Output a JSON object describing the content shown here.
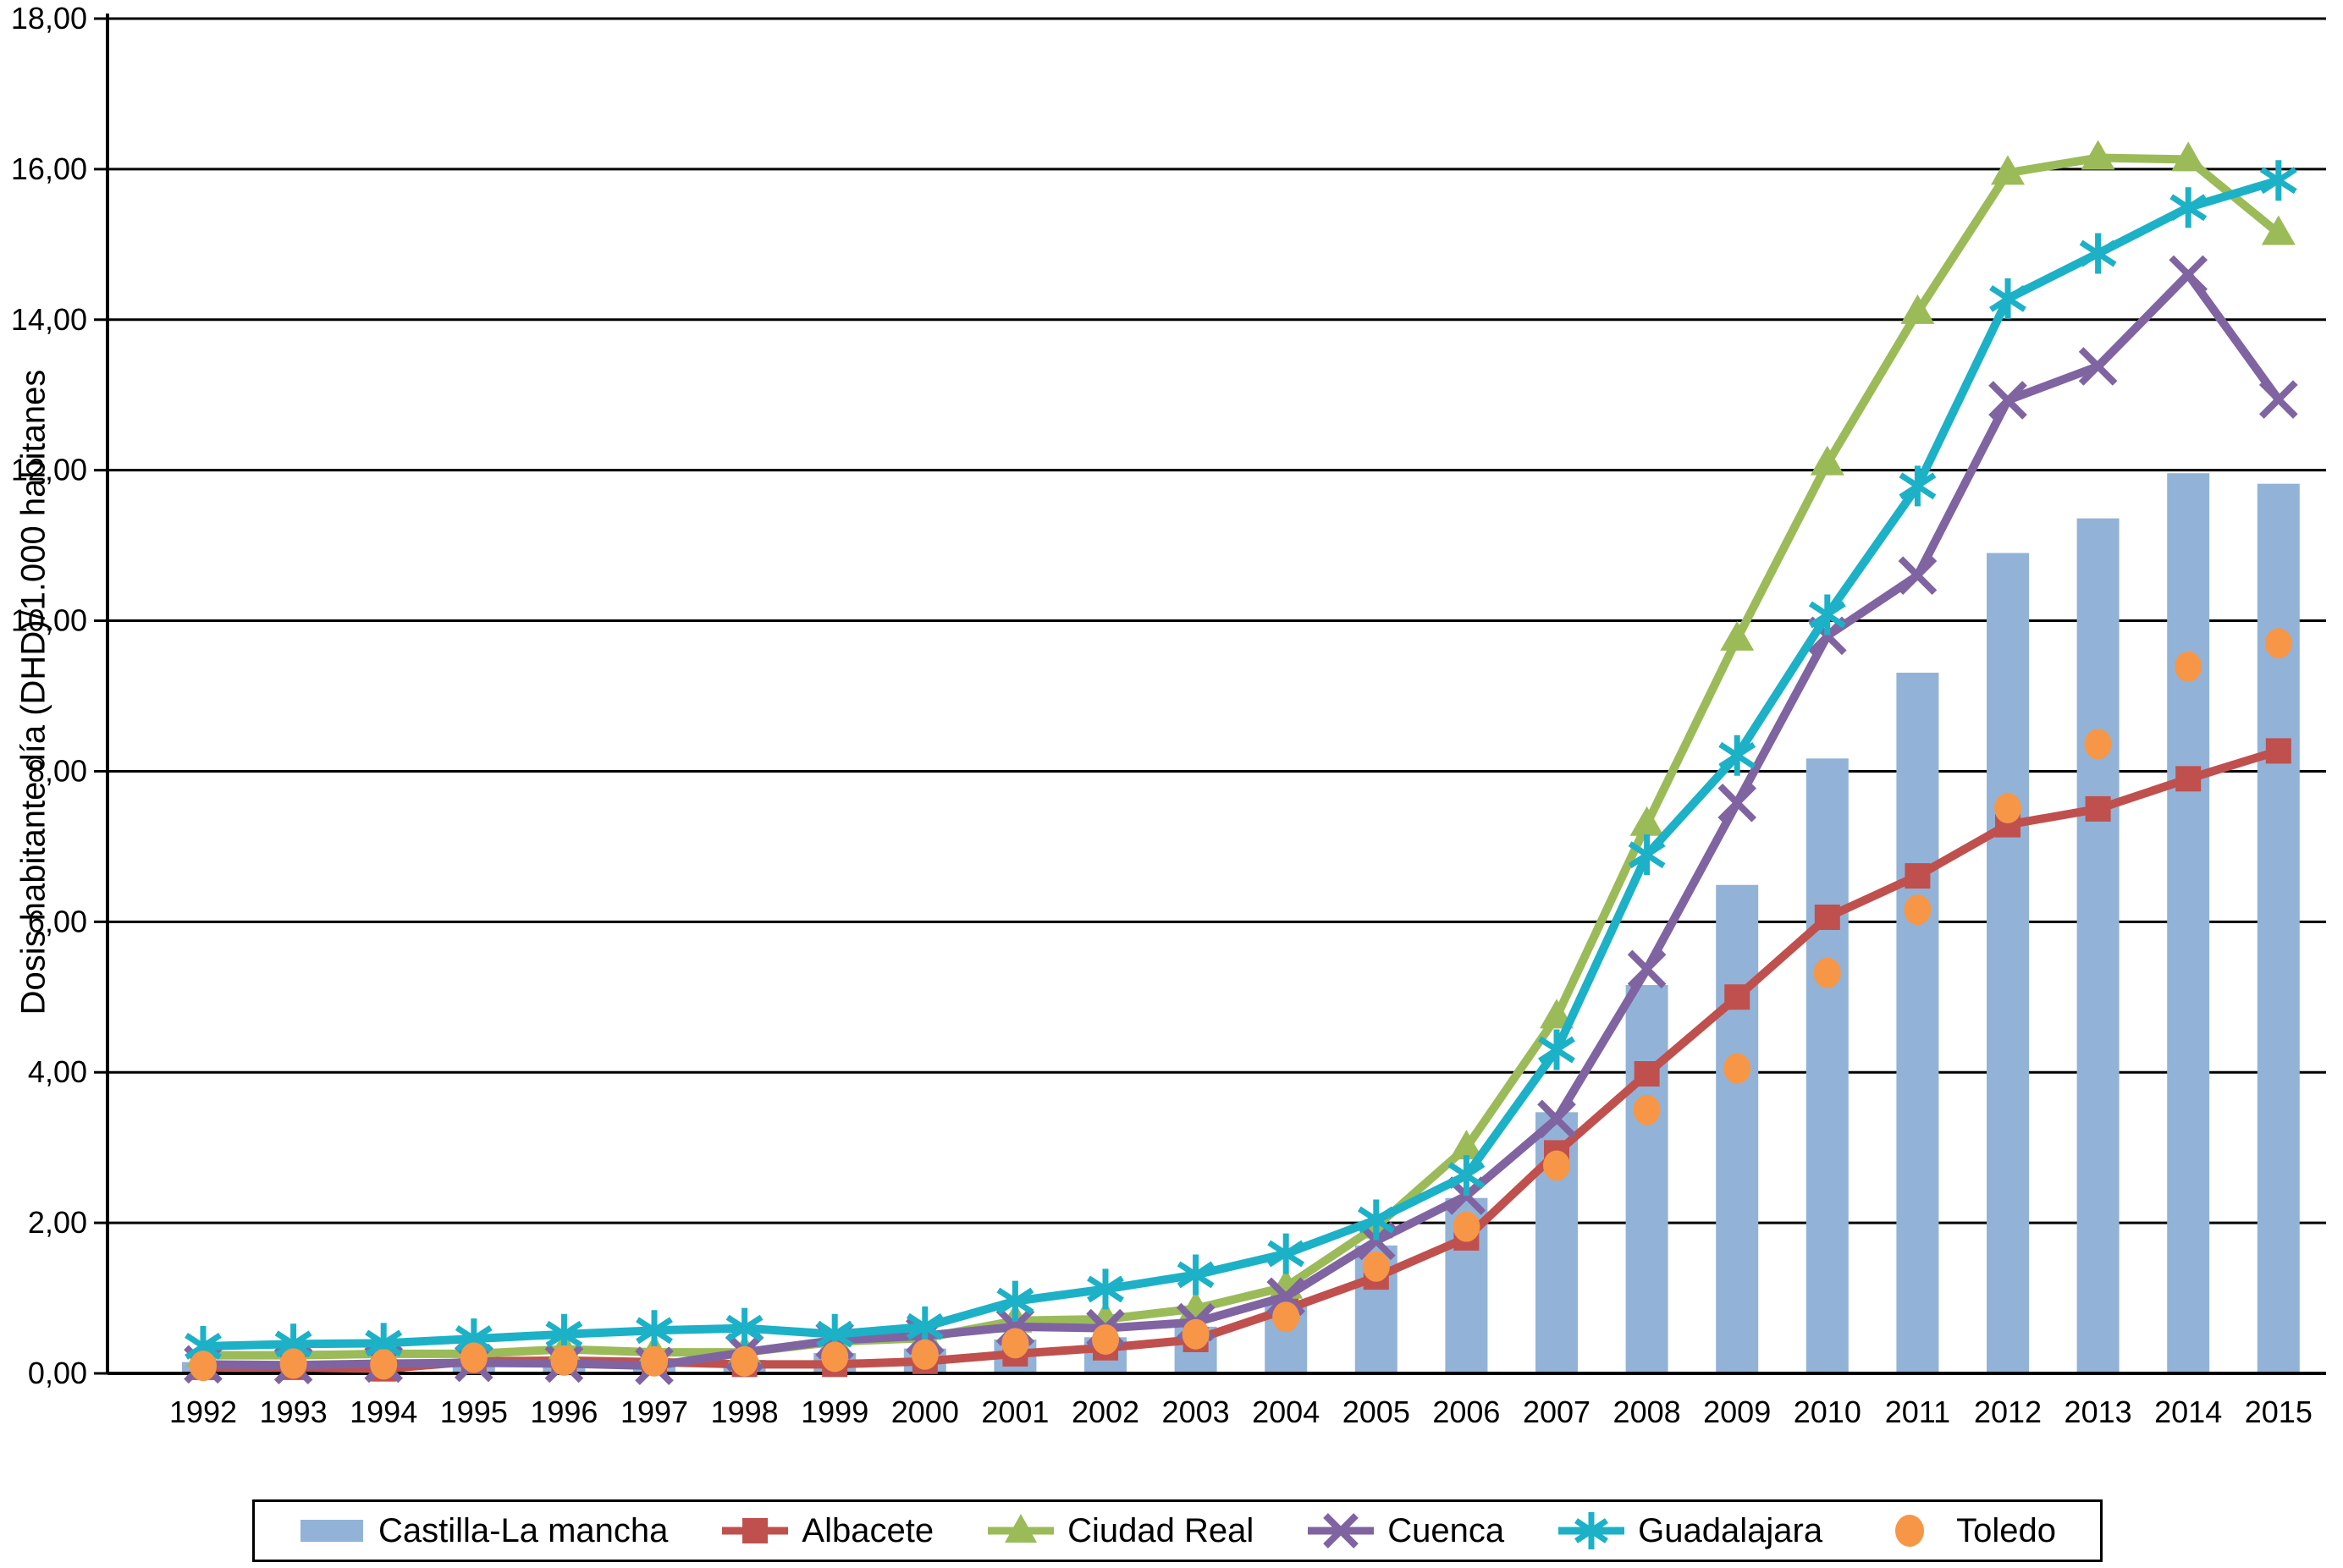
{
  "page": {
    "background": "#ffffff"
  },
  "chart_data": {
    "type": "combo-bar-line",
    "title": "",
    "xlabel": "",
    "ylabel": "Dosis habitante día (DHD)/1.000 habitanes",
    "ylim": [
      0,
      18
    ],
    "y_tick_step": 2,
    "y_tick_labels": [
      "0,00",
      "2,00",
      "4,00",
      "6,00",
      "8,00",
      "10,00",
      "12,00",
      "14,00",
      "16,00",
      "18,00"
    ],
    "grid": "horizontal black gridlines",
    "legend_position": "bottom",
    "categories": [
      "1992",
      "1993",
      "1994",
      "1995",
      "1996",
      "1997",
      "1998",
      "1999",
      "2000",
      "2001",
      "2002",
      "2003",
      "2004",
      "2005",
      "2006",
      "2007",
      "2008",
      "2009",
      "2010",
      "2011",
      "2012",
      "2013",
      "2014",
      "2015"
    ],
    "series": [
      {
        "name": "Castilla-La mancha",
        "type": "bar",
        "marker": "rect",
        "color": "#92B3D7",
        "values": [
          0.15,
          0.15,
          0.15,
          0.18,
          0.17,
          0.16,
          0.18,
          0.27,
          0.33,
          0.45,
          0.48,
          0.62,
          0.95,
          1.7,
          2.33,
          3.47,
          5.16,
          6.49,
          8.17,
          9.31,
          10.9,
          11.36,
          11.96,
          11.82
        ]
      },
      {
        "name": "Albacete",
        "type": "line",
        "marker": "square",
        "color": "#C0504D",
        "values": [
          0.08,
          0.08,
          0.06,
          0.16,
          0.17,
          0.15,
          0.12,
          0.12,
          0.16,
          0.26,
          0.34,
          0.45,
          0.85,
          1.28,
          1.8,
          2.93,
          3.98,
          5.0,
          6.06,
          6.61,
          7.29,
          7.5,
          7.9,
          8.27
        ]
      },
      {
        "name": "Ciudad Real",
        "type": "line",
        "marker": "triangle",
        "color": "#9BBB59",
        "values": [
          0.24,
          0.24,
          0.26,
          0.26,
          0.32,
          0.28,
          0.28,
          0.42,
          0.47,
          0.7,
          0.72,
          0.86,
          1.15,
          1.95,
          3.0,
          4.74,
          7.3,
          9.76,
          12.09,
          14.1,
          15.95,
          16.15,
          16.13,
          15.15
        ]
      },
      {
        "name": "Cuenca",
        "type": "line",
        "marker": "x",
        "color": "#8064A2",
        "values": [
          0.12,
          0.11,
          0.13,
          0.14,
          0.13,
          0.1,
          0.28,
          0.44,
          0.5,
          0.62,
          0.6,
          0.68,
          1.02,
          1.76,
          2.36,
          3.38,
          5.37,
          7.58,
          9.8,
          10.6,
          12.93,
          13.38,
          14.6,
          12.94
        ]
      },
      {
        "name": "Guadalajara",
        "type": "line",
        "marker": "asterisk",
        "color": "#1CB1C7",
        "values": [
          0.36,
          0.39,
          0.4,
          0.46,
          0.52,
          0.57,
          0.6,
          0.52,
          0.62,
          0.96,
          1.12,
          1.31,
          1.59,
          2.04,
          2.63,
          4.3,
          6.89,
          8.21,
          10.08,
          11.79,
          14.28,
          14.88,
          15.49,
          15.85
        ]
      },
      {
        "name": "Toledo",
        "type": "scatter",
        "marker": "circle",
        "color": "#F79646",
        "values": [
          0.1,
          0.13,
          0.12,
          0.21,
          0.17,
          0.16,
          0.16,
          0.22,
          0.25,
          0.4,
          0.45,
          0.52,
          0.75,
          1.42,
          1.95,
          2.76,
          3.5,
          4.05,
          5.32,
          6.16,
          7.51,
          8.36,
          9.39,
          9.7
        ]
      }
    ]
  }
}
